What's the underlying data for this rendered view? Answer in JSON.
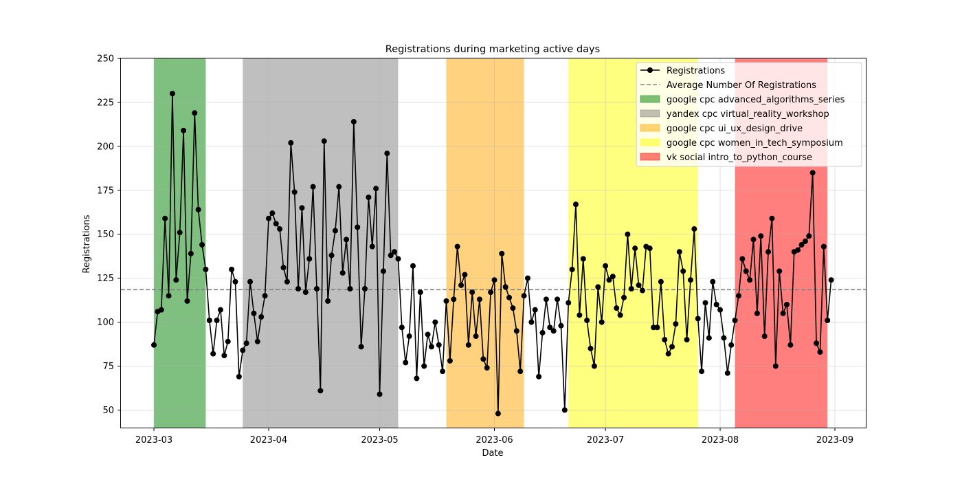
{
  "chart_data": {
    "type": "line",
    "title": "Registrations during marketing active days",
    "xlabel": "Date",
    "ylabel": "Registrations",
    "ylim": [
      40,
      250
    ],
    "xlim": [
      "2022-02-21",
      "2023-09-12"
    ],
    "grid": true,
    "legend_position": "top-right",
    "x_tick_labels": [
      "2023-03",
      "2023-04",
      "2023-05",
      "2023-06",
      "2023-07",
      "2023-08",
      "2023-09"
    ],
    "x_tick_dates": [
      "2023-03-01",
      "2023-04-01",
      "2023-05-01",
      "2023-06-01",
      "2023-07-01",
      "2023-08-01",
      "2023-09-01"
    ],
    "y_ticks": [
      50,
      75,
      100,
      125,
      150,
      175,
      200,
      225,
      250
    ],
    "start_date": "2023-03-01",
    "series": [
      {
        "name": "Registrations",
        "color": "#000000",
        "values": [
          87,
          106,
          107,
          159,
          115,
          230,
          124,
          151,
          209,
          112,
          139,
          219,
          164,
          144,
          130,
          101,
          82,
          101,
          107,
          81,
          89,
          130,
          123,
          69,
          84,
          88,
          123,
          105,
          89,
          103,
          115,
          159,
          162,
          156,
          153,
          131,
          123,
          202,
          174,
          119,
          165,
          117,
          136,
          177,
          119,
          61,
          203,
          112,
          138,
          152,
          177,
          128,
          147,
          119,
          214,
          154,
          86,
          119,
          171,
          143,
          176,
          59,
          129,
          196,
          138,
          140,
          136,
          97,
          77,
          92,
          132,
          68,
          117,
          75,
          93,
          86,
          100,
          87,
          72,
          112,
          78,
          113,
          143,
          121,
          127,
          87,
          117,
          92,
          113,
          79,
          74,
          117,
          124,
          48,
          139,
          120,
          114,
          108,
          95,
          72,
          115,
          125,
          100,
          107,
          69,
          94,
          113,
          97,
          95,
          113,
          98,
          50,
          111,
          130,
          167,
          104,
          136,
          101,
          85,
          75,
          120,
          100,
          132,
          124,
          126,
          108,
          104,
          114,
          150,
          119,
          142,
          121,
          118,
          143,
          142,
          97,
          97,
          123,
          90,
          82,
          86,
          99,
          140,
          129,
          90,
          124,
          153,
          102,
          72,
          111,
          91,
          123,
          110,
          107,
          91,
          71,
          87,
          101,
          115,
          136,
          129,
          124,
          147,
          105,
          149,
          92,
          140,
          159,
          75,
          129,
          105,
          110,
          87,
          140,
          141,
          144,
          146,
          149,
          185,
          88,
          83,
          143,
          101,
          124
        ]
      },
      {
        "name": "Average Number Of Registrations",
        "color": "#808080",
        "value": 118.5
      }
    ],
    "campaigns": [
      {
        "name": "google cpc advanced_algorithms_series",
        "start": "2023-03-01",
        "end": "2023-03-15",
        "color": "#008000"
      },
      {
        "name": "yandex cpc virtual_reality_workshop",
        "start": "2023-03-25",
        "end": "2023-05-06",
        "color": "#808080"
      },
      {
        "name": "google cpc ui_ux_design_drive",
        "start": "2023-05-19",
        "end": "2023-06-09",
        "color": "#ffa500"
      },
      {
        "name": "google cpc women_in_tech_symposium",
        "start": "2023-06-21",
        "end": "2023-07-26",
        "color": "#ffff00"
      },
      {
        "name": "vk social intro_to_python_course",
        "start": "2023-08-05",
        "end": "2023-08-30",
        "color": "#ff0000"
      }
    ]
  }
}
